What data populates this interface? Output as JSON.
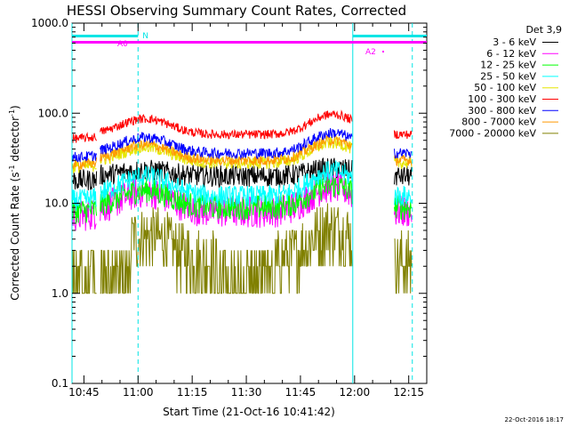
{
  "chart_data": {
    "type": "line",
    "title": "HESSI Observing Summary Count Rates, Corrected",
    "xlabel": "Start Time (21-Oct-16 10:41:42)",
    "ylabel_main": "Corrected Count Rate (s",
    "ylabel_sup1": "-1",
    "ylabel_mid": " detector",
    "ylabel_sup2": "-1",
    "ylabel_end": ")",
    "ylabel": "Corrected Count Rate (s-1 detector-1)",
    "yscale": "log",
    "ylim": [
      0.1,
      1000
    ],
    "xlim_minutes": [
      41.7,
      140
    ],
    "x_ticks": [
      {
        "label": "10:45",
        "value": 45
      },
      {
        "label": "11:00",
        "value": 60
      },
      {
        "label": "11:15",
        "value": 75
      },
      {
        "label": "11:30",
        "value": 90
      },
      {
        "label": "11:45",
        "value": 105
      },
      {
        "label": "12:00",
        "value": 120
      },
      {
        "label": "12:15",
        "value": 135
      }
    ],
    "y_ticks": [
      {
        "label": "0.1",
        "value": 0.1
      },
      {
        "label": "1.0",
        "value": 1
      },
      {
        "label": "10.0",
        "value": 10
      },
      {
        "label": "100.0",
        "value": 100
      },
      {
        "label": "1000.0",
        "value": 1000
      }
    ],
    "legend_header": "Det 3,9",
    "legend_position": "right",
    "series": [
      {
        "name": "3 - 6 keV",
        "color": "#000000",
        "base": 20,
        "amp": 1.3,
        "noise": 0.12
      },
      {
        "name": "6 - 12 keV",
        "color": "#ff00ff",
        "base": 8,
        "amp": 2.2,
        "noise": 0.18
      },
      {
        "name": "12 - 25 keV",
        "color": "#00ff00",
        "base": 9,
        "amp": 2.0,
        "noise": 0.14
      },
      {
        "name": "25 - 50 keV",
        "color": "#00ffff",
        "base": 12,
        "amp": 2.2,
        "noise": 0.12
      },
      {
        "name": "50 - 100 keV",
        "color": "#e6e600",
        "base": 28,
        "amp": 1.9,
        "noise": 0.07
      },
      {
        "name": "100 - 300 keV",
        "color": "#ff0000",
        "base": 58,
        "amp": 1.9,
        "noise": 0.05
      },
      {
        "name": "300 - 800 keV",
        "color": "#0000ff",
        "base": 36,
        "amp": 1.9,
        "noise": 0.06
      },
      {
        "name": "800 - 7000 keV",
        "color": "#ff9900",
        "base": 30,
        "amp": 1.9,
        "noise": 0.06
      },
      {
        "name": "7000 - 20000 keV",
        "color": "#808000",
        "base": 2.2,
        "amp": 2.8,
        "noise": 0.35
      }
    ],
    "flag_bars": [
      {
        "label": "N",
        "color": "#00e5e5",
        "start": 41.7,
        "end": 60
      },
      {
        "label": "",
        "color": "#00e5e5",
        "start": 119.5,
        "end": 140
      }
    ],
    "attenuator_bar": {
      "color": "#ff00ff",
      "start": 41.7,
      "end": 140,
      "labels": [
        "A0",
        "A2"
      ]
    },
    "day_night": [
      {
        "value": 41.7,
        "style": "solid"
      },
      {
        "value": 60,
        "style": "dashed"
      },
      {
        "value": 119.5,
        "style": "solid"
      },
      {
        "value": 136,
        "style": "dashed"
      }
    ],
    "footer_date": "22-Oct-2016 18:17"
  }
}
